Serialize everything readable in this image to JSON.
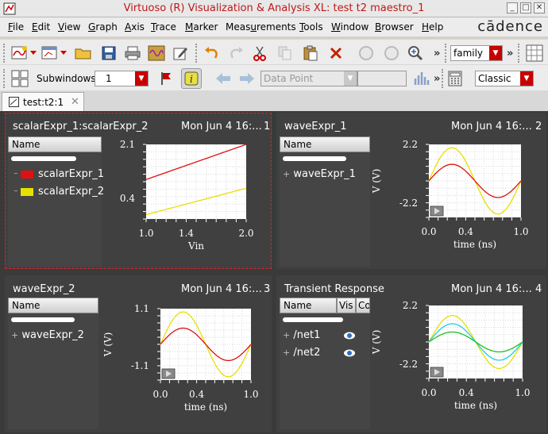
{
  "window": {
    "title": "Virtuoso (R) Visualization & Analysis XL: test t2 maestro_1",
    "brand": "cādence"
  },
  "menu": [
    {
      "label": "File",
      "accel": "F"
    },
    {
      "label": "Edit",
      "accel": "E"
    },
    {
      "label": "View",
      "accel": "V"
    },
    {
      "label": "Graph",
      "accel": "G"
    },
    {
      "label": "Axis",
      "accel": "A"
    },
    {
      "label": "Trace",
      "accel": "T"
    },
    {
      "label": "Marker",
      "accel": "M"
    },
    {
      "label": "Measurements",
      "accel": "u"
    },
    {
      "label": "Tools",
      "accel": "T"
    },
    {
      "label": "Window",
      "accel": "W"
    },
    {
      "label": "Browser",
      "accel": "B"
    },
    {
      "label": "Help",
      "accel": "H"
    }
  ],
  "toolbar1": {
    "family_select": "family",
    "more": "»"
  },
  "toolbar2": {
    "subwindows_label": "Subwindows:",
    "subwindows_value": "1",
    "data_point": "Data Point",
    "style_select": "Classic",
    "more": "»"
  },
  "tab": {
    "label": "test:t2:1",
    "close": "✕"
  },
  "colors": {
    "red": "#e01010",
    "yellow": "#e8e000",
    "cyan": "#20d0e0",
    "green": "#20c020",
    "accent": "#c80000"
  },
  "subwindows": [
    {
      "title": "scalarExpr_1:scalarExpr_2",
      "date": "Mon Jun 4 16:...",
      "index": "1",
      "tree_header": "Name",
      "tree_rows": [
        "scalarExpr_1",
        "scalarExpr_2"
      ],
      "chart_data": {
        "type": "line",
        "x": [
          1.0,
          2.0
        ],
        "series": [
          {
            "name": "scalarExpr_1",
            "color": "#e01010",
            "values": [
              1.3,
              2.1
            ]
          },
          {
            "name": "scalarExpr_2",
            "color": "#e8e000",
            "values": [
              0.5,
              1.1
            ]
          }
        ],
        "xticks": [
          "1.0",
          "1.4",
          "2.0"
        ],
        "yticks": [
          "2.1",
          "0.4"
        ],
        "xlabel": "Vin",
        "ylabel": "",
        "xlim": [
          1.0,
          2.0
        ],
        "ylim": [
          0.4,
          2.1
        ]
      }
    },
    {
      "title": "waveExpr_1",
      "date": "Mon Jun 4 16:...",
      "index": "2",
      "tree_header": "Name",
      "tree_rows": [
        "waveExpr_1"
      ],
      "chart_data": {
        "type": "line",
        "series": [
          {
            "name": "",
            "color": "#e8e000",
            "amplitude": 2.0
          },
          {
            "name": "",
            "color": "#e01010",
            "amplitude": 1.0
          }
        ],
        "xticks": [
          "0.0",
          "0.4",
          "1.0"
        ],
        "yticks": [
          "2.2",
          "-2.2"
        ],
        "xlabel": "time (ns)",
        "ylabel": "V (V)",
        "xlim": [
          0.0,
          1.0
        ],
        "ylim": [
          -2.2,
          2.2
        ]
      }
    },
    {
      "title": "waveExpr_2",
      "date": "Mon Jun 4 16:...",
      "index": "3",
      "tree_header": "Name",
      "tree_rows": [
        "waveExpr_2"
      ],
      "chart_data": {
        "type": "line",
        "series": [
          {
            "name": "",
            "color": "#e8e000",
            "amplitude": 1.0
          },
          {
            "name": "",
            "color": "#e01010",
            "amplitude": 0.5
          }
        ],
        "xticks": [
          "0.0",
          "0.4",
          "1.0"
        ],
        "yticks": [
          "1.1",
          "-1.1"
        ],
        "xlabel": "time (ns)",
        "ylabel": "V (V)",
        "xlim": [
          0.0,
          1.0
        ],
        "ylim": [
          -1.1,
          1.1
        ]
      }
    },
    {
      "title": "Transient Response",
      "date": "Mon Jun 4 16:...",
      "index": "4",
      "tree_header": "Name",
      "tree_header_vis": "Vis",
      "tree_header_co": "Co",
      "tree_rows": [
        "/net1",
        "/net2"
      ],
      "chart_data": {
        "type": "line",
        "series": [
          {
            "name": "",
            "color": "#e8e000",
            "amplitude": 1.6
          },
          {
            "name": "",
            "color": "#20d0e0",
            "amplitude": 1.1
          },
          {
            "name": "",
            "color": "#20c020",
            "amplitude": 0.6
          }
        ],
        "xticks": [
          "0.0",
          "0.4",
          "1.0"
        ],
        "yticks": [
          "2.2",
          "-2.2"
        ],
        "xlabel": "time (ns)",
        "ylabel": "V (V)",
        "xlim": [
          0.0,
          1.0
        ],
        "ylim": [
          -2.2,
          2.2
        ]
      }
    }
  ]
}
